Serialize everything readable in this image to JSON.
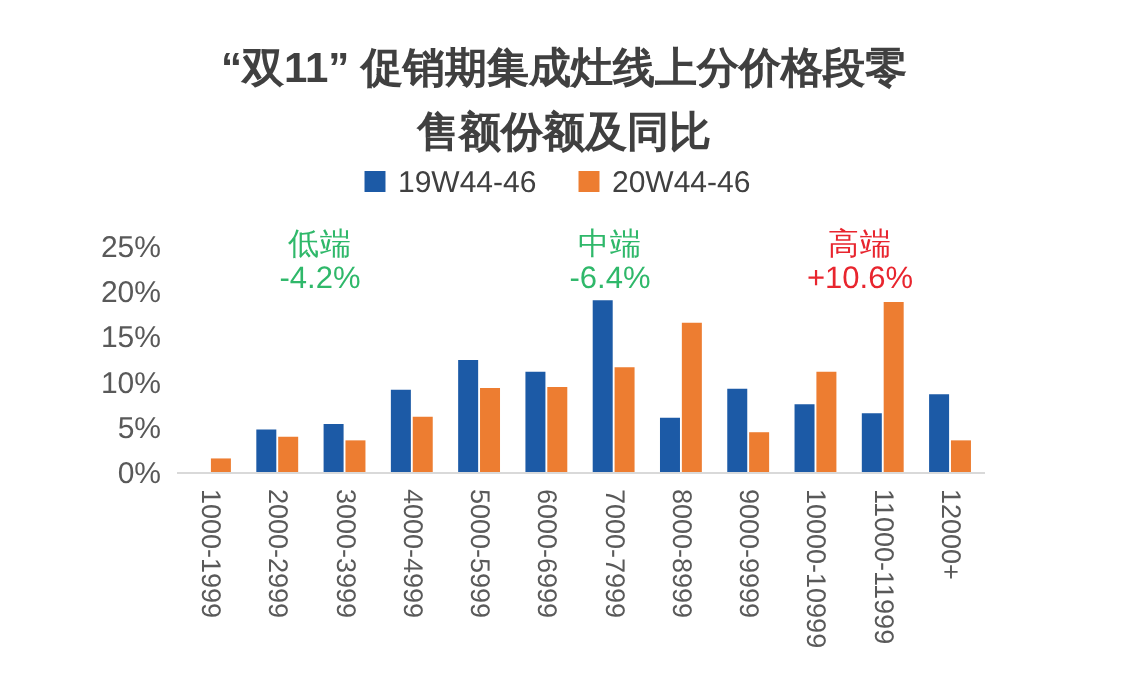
{
  "chart_data": {
    "type": "bar",
    "title": "“双11” 促销期集成灶线上分价格段零售额份额及同比",
    "categories": [
      "1000-1999",
      "2000-2999",
      "3000-3999",
      "4000-4999",
      "5000-5999",
      "6000-6999",
      "7000-7999",
      "8000-8999",
      "9000-9999",
      "10000-10999",
      "11000-11999",
      "12000+"
    ],
    "series": [
      {
        "name": "19W44-46",
        "color": "#1c5aa6",
        "values": [
          null,
          4.7,
          5.3,
          9.1,
          12.4,
          11.1,
          19.0,
          6.0,
          9.2,
          7.5,
          6.5,
          8.6
        ]
      },
      {
        "name": "20W44-46",
        "color": "#ed7d31",
        "values": [
          1.5,
          3.9,
          3.5,
          6.1,
          9.3,
          9.4,
          11.6,
          16.5,
          4.4,
          11.1,
          18.8,
          3.5
        ]
      }
    ],
    "ylim": [
      0,
      25
    ],
    "yticks": [
      {
        "value": 0,
        "label": "0%"
      },
      {
        "value": 5,
        "label": "5%"
      },
      {
        "value": 10,
        "label": "10%"
      },
      {
        "value": 15,
        "label": "15%"
      },
      {
        "value": 20,
        "label": "20%"
      },
      {
        "value": 25,
        "label": "25%"
      }
    ],
    "annotations": [
      "低端\n-4.2%",
      "中端\n-6.4%",
      "高端\n+10.6%"
    ],
    "grid": false,
    "legend": "top"
  }
}
